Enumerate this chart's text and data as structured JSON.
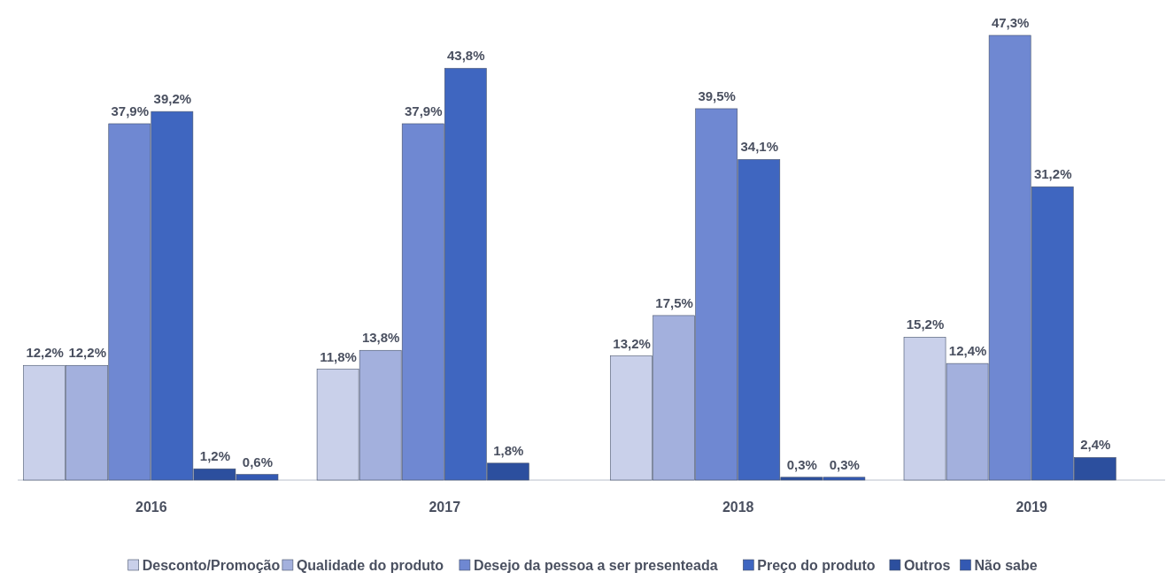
{
  "chart_data": {
    "type": "bar",
    "categories": [
      "2016",
      "2017",
      "2018",
      "2019"
    ],
    "series": [
      {
        "name": "Desconto/Promoção",
        "color": "#c9d0ea",
        "values": [
          12.2,
          11.8,
          13.2,
          15.2
        ],
        "value_labels": [
          "12,2%",
          "11,8%",
          "13,2%",
          "15,2%"
        ]
      },
      {
        "name": "Qualidade do produto",
        "color": "#a3b0dd",
        "values": [
          12.2,
          13.8,
          17.5,
          12.4
        ],
        "value_labels": [
          "12,2%",
          "13,8%",
          "17,5%",
          "12,4%"
        ]
      },
      {
        "name": "Desejo da pessoa a ser presenteada",
        "color": "#6f88d2",
        "values": [
          37.9,
          37.9,
          39.5,
          47.3
        ],
        "value_labels": [
          "37,9%",
          "37,9%",
          "39,5%",
          "47,3%"
        ]
      },
      {
        "name": "Preço do produto",
        "color": "#3f66c0",
        "values": [
          39.2,
          43.8,
          34.1,
          31.2
        ],
        "value_labels": [
          "39,2%",
          "43,8%",
          "34,1%",
          "31,2%"
        ]
      },
      {
        "name": "Outros",
        "color": "#2c4f9e",
        "values": [
          1.2,
          1.8,
          0.3,
          2.4
        ],
        "value_labels": [
          "1,2%",
          "1,8%",
          "0,3%",
          "2,4%"
        ]
      },
      {
        "name": "Não sabe",
        "color": "#3359b3",
        "values": [
          0.6,
          null,
          0.3,
          null
        ],
        "value_labels": [
          "0,6%",
          null,
          "0,3%",
          null
        ]
      }
    ],
    "legend": "bottom"
  }
}
